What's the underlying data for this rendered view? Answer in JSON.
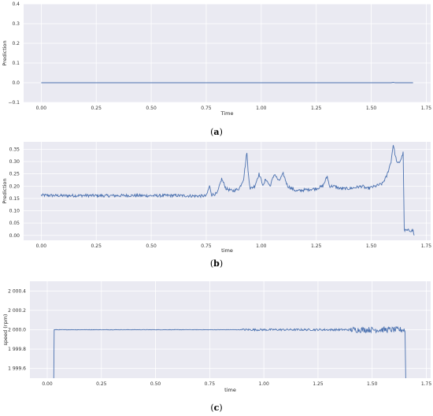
{
  "chart_data": [
    {
      "panel": "(a)",
      "caption_letter": "a",
      "type": "line",
      "xlabel": "Time",
      "ylabel": "Prediction",
      "xlim": [
        -0.08,
        1.77
      ],
      "ylim": [
        -0.1,
        0.4
      ],
      "x_ticks": [
        "0.00",
        "0.25",
        "0.50",
        "0.75",
        "1.00",
        "1.25",
        "1.50",
        "1.75"
      ],
      "x_tick_values": [
        0,
        0.25,
        0.5,
        0.75,
        1.0,
        1.25,
        1.5,
        1.75
      ],
      "y_ticks": [
        "−0.1",
        "0.0",
        "0.1",
        "0.2",
        "0.3",
        "0.4"
      ],
      "y_tick_values": [
        -0.1,
        0.0,
        0.1,
        0.2,
        0.3,
        0.4
      ],
      "grid": true,
      "line_color": "#4c72b0",
      "series": [
        {
          "x": [
            0,
            0.25,
            0.5,
            0.75,
            1.0,
            1.25,
            1.5,
            1.59,
            1.6,
            1.61,
            1.69
          ],
          "y": [
            0.0,
            0.0,
            0.0,
            0.0,
            0.0,
            0.0,
            0.0,
            0.0,
            0.002,
            0.0,
            0.0
          ]
        }
      ]
    },
    {
      "panel": "(b)",
      "caption_letter": "b",
      "type": "line",
      "xlabel": "time",
      "ylabel": "Prediction",
      "xlim": [
        -0.08,
        1.77
      ],
      "ylim": [
        -0.02,
        0.38
      ],
      "x_ticks": [
        "0.00",
        "0.25",
        "0.50",
        "0.75",
        "1.00",
        "1.25",
        "1.50",
        "1.75"
      ],
      "x_tick_values": [
        0,
        0.25,
        0.5,
        0.75,
        1.0,
        1.25,
        1.5,
        1.75
      ],
      "y_ticks": [
        "0.00",
        "0.05",
        "0.10",
        "0.15",
        "0.20",
        "0.25",
        "0.30",
        "0.35"
      ],
      "y_tick_values": [
        0.0,
        0.05,
        0.1,
        0.15,
        0.2,
        0.25,
        0.3,
        0.35
      ],
      "grid": true,
      "line_color": "#4c72b0",
      "series": [
        {
          "x": [
            0.0,
            0.1,
            0.2,
            0.3,
            0.4,
            0.5,
            0.6,
            0.7,
            0.75,
            0.765,
            0.775,
            0.8,
            0.82,
            0.84,
            0.87,
            0.9,
            0.92,
            0.935,
            0.94,
            0.95,
            0.97,
            0.99,
            1.01,
            1.02,
            1.04,
            1.06,
            1.08,
            1.1,
            1.12,
            1.16,
            1.2,
            1.25,
            1.28,
            1.3,
            1.31,
            1.33,
            1.36,
            1.4,
            1.43,
            1.46,
            1.48,
            1.52,
            1.55,
            1.57,
            1.59,
            1.6,
            1.61,
            1.62,
            1.63,
            1.64,
            1.645,
            1.65,
            1.66,
            1.68,
            1.69,
            1.695
          ],
          "y": [
            0.163,
            0.161,
            0.162,
            0.161,
            0.162,
            0.161,
            0.162,
            0.16,
            0.16,
            0.2,
            0.165,
            0.17,
            0.23,
            0.19,
            0.18,
            0.19,
            0.23,
            0.34,
            0.26,
            0.19,
            0.2,
            0.25,
            0.2,
            0.23,
            0.2,
            0.25,
            0.22,
            0.25,
            0.2,
            0.18,
            0.185,
            0.19,
            0.2,
            0.24,
            0.2,
            0.2,
            0.19,
            0.19,
            0.195,
            0.2,
            0.19,
            0.2,
            0.21,
            0.24,
            0.3,
            0.37,
            0.32,
            0.29,
            0.3,
            0.32,
            0.34,
            0.02,
            0.02,
            0.02,
            0.02,
            0.0
          ]
        }
      ]
    },
    {
      "panel": "(c)",
      "caption_letter": "c",
      "type": "line",
      "xlabel": "time",
      "ylabel": "speed (rpm)",
      "xlim": [
        -0.08,
        1.77
      ],
      "ylim": [
        1999.5,
        2000.5
      ],
      "x_ticks": [
        "0.00",
        "0.25",
        "0.50",
        "0.75",
        "1.00",
        "1.25",
        "1.50",
        "1.75"
      ],
      "x_tick_values": [
        0,
        0.25,
        0.5,
        0.75,
        1.0,
        1.25,
        1.5,
        1.75
      ],
      "y_ticks": [
        "1 999.6",
        "1 999.8",
        "2 000.0",
        "2 000.2",
        "2 000.4"
      ],
      "y_tick_values": [
        1999.6,
        1999.8,
        2000.0,
        2000.2,
        2000.4
      ],
      "grid": true,
      "line_color": "#4c72b0",
      "series": [
        {
          "x": [
            0.03,
            0.032,
            0.1,
            0.5,
            0.8,
            1.0,
            1.2,
            1.35,
            1.45,
            1.55,
            1.6,
            1.65,
            1.652,
            1.655
          ],
          "y": [
            1999.5,
            2000.0,
            2000.0,
            2000.0,
            2000.0,
            2000.0,
            2000.0,
            2000.0,
            2000.0,
            2000.0,
            2000.0,
            2000.0,
            1999.96,
            1999.5
          ]
        }
      ]
    }
  ]
}
